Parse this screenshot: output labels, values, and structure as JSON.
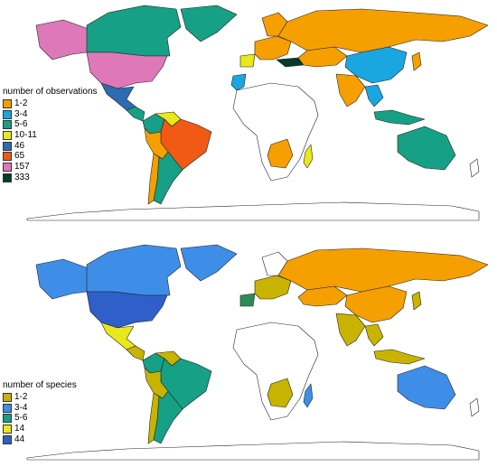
{
  "maps": [
    {
      "legend": {
        "title": "number of observations",
        "items": [
          {
            "label": "1-2",
            "color": "#F5A000"
          },
          {
            "label": "3-4",
            "color": "#1AA6E0"
          },
          {
            "label": "5-6",
            "color": "#16A085"
          },
          {
            "label": "10-11",
            "color": "#E8E81A"
          },
          {
            "label": "46",
            "color": "#2B6CB3"
          },
          {
            "label": "65",
            "color": "#F05A14"
          },
          {
            "label": "157",
            "color": "#DE78B8"
          },
          {
            "label": "333",
            "color": "#053D2A"
          }
        ]
      },
      "regions": [
        {
          "name": "north-america",
          "color": "#16A085"
        },
        {
          "name": "alaska",
          "color": "#DE78B8"
        },
        {
          "name": "usa",
          "color": "#DE78B8"
        },
        {
          "name": "greenland",
          "color": "#16A085"
        },
        {
          "name": "mexico",
          "color": "#2B6CB3"
        },
        {
          "name": "central-america",
          "color": "#16A085"
        },
        {
          "name": "colombia",
          "color": "#16A085"
        },
        {
          "name": "venezuela",
          "color": "#E8E81A"
        },
        {
          "name": "brazil",
          "color": "#F05A14"
        },
        {
          "name": "peru-bolivia",
          "color": "#F5A000"
        },
        {
          "name": "argentina",
          "color": "#16A085"
        },
        {
          "name": "chile",
          "color": "#F5A000"
        },
        {
          "name": "russia",
          "color": "#F5A000"
        },
        {
          "name": "scandinavia",
          "color": "#F5A000"
        },
        {
          "name": "europe",
          "color": "#F5A000"
        },
        {
          "name": "turkey",
          "color": "#053D2A"
        },
        {
          "name": "iberia",
          "color": "#E8E81A"
        },
        {
          "name": "morocco",
          "color": "#1AA6E0"
        },
        {
          "name": "china",
          "color": "#1AA6E0"
        },
        {
          "name": "kazakhstan",
          "color": "#F5A000"
        },
        {
          "name": "india",
          "color": "#F5A000"
        },
        {
          "name": "se-asia",
          "color": "#1AA6E0"
        },
        {
          "name": "indonesia",
          "color": "#16A085"
        },
        {
          "name": "australia",
          "color": "#16A085"
        },
        {
          "name": "japan",
          "color": "#F5A000"
        },
        {
          "name": "southern-africa",
          "color": "#F5A000"
        },
        {
          "name": "madagascar",
          "color": "#E8E81A"
        }
      ]
    },
    {
      "legend": {
        "title": "number of species",
        "items": [
          {
            "label": "1-2",
            "color": "#C8B400"
          },
          {
            "label": "3-4",
            "color": "#3E8EE8"
          },
          {
            "label": "5-6",
            "color": "#16A085"
          },
          {
            "label": "14",
            "color": "#E8E81A"
          },
          {
            "label": "44",
            "color": "#2F5FC8"
          }
        ]
      },
      "regions": [
        {
          "name": "canada",
          "color": "#3E8EE8"
        },
        {
          "name": "greenland",
          "color": "#3E8EE8"
        },
        {
          "name": "alaska",
          "color": "#3E8EE8"
        },
        {
          "name": "usa",
          "color": "#2F5FC8"
        },
        {
          "name": "mexico",
          "color": "#E8E81A"
        },
        {
          "name": "central-america",
          "color": "#C8B400"
        },
        {
          "name": "colombia",
          "color": "#16A085"
        },
        {
          "name": "venezuela",
          "color": "#C8B400"
        },
        {
          "name": "brazil",
          "color": "#16A085"
        },
        {
          "name": "peru-bolivia",
          "color": "#C8B400"
        },
        {
          "name": "argentina",
          "color": "#16A085"
        },
        {
          "name": "chile",
          "color": "#C8B400"
        },
        {
          "name": "russia",
          "color": "#F5A000"
        },
        {
          "name": "europe",
          "color": "#C8B400"
        },
        {
          "name": "iberia",
          "color": "#2E8B57"
        },
        {
          "name": "china",
          "color": "#F5A000"
        },
        {
          "name": "kazakhstan",
          "color": "#F5A000"
        },
        {
          "name": "india",
          "color": "#C8B400"
        },
        {
          "name": "se-asia",
          "color": "#C8B400"
        },
        {
          "name": "indonesia",
          "color": "#C8B400"
        },
        {
          "name": "australia",
          "color": "#3E8EE8"
        },
        {
          "name": "japan",
          "color": "#C8B400"
        },
        {
          "name": "southern-africa",
          "color": "#C8B400"
        },
        {
          "name": "madagascar",
          "color": "#3E8EE8"
        }
      ]
    }
  ]
}
